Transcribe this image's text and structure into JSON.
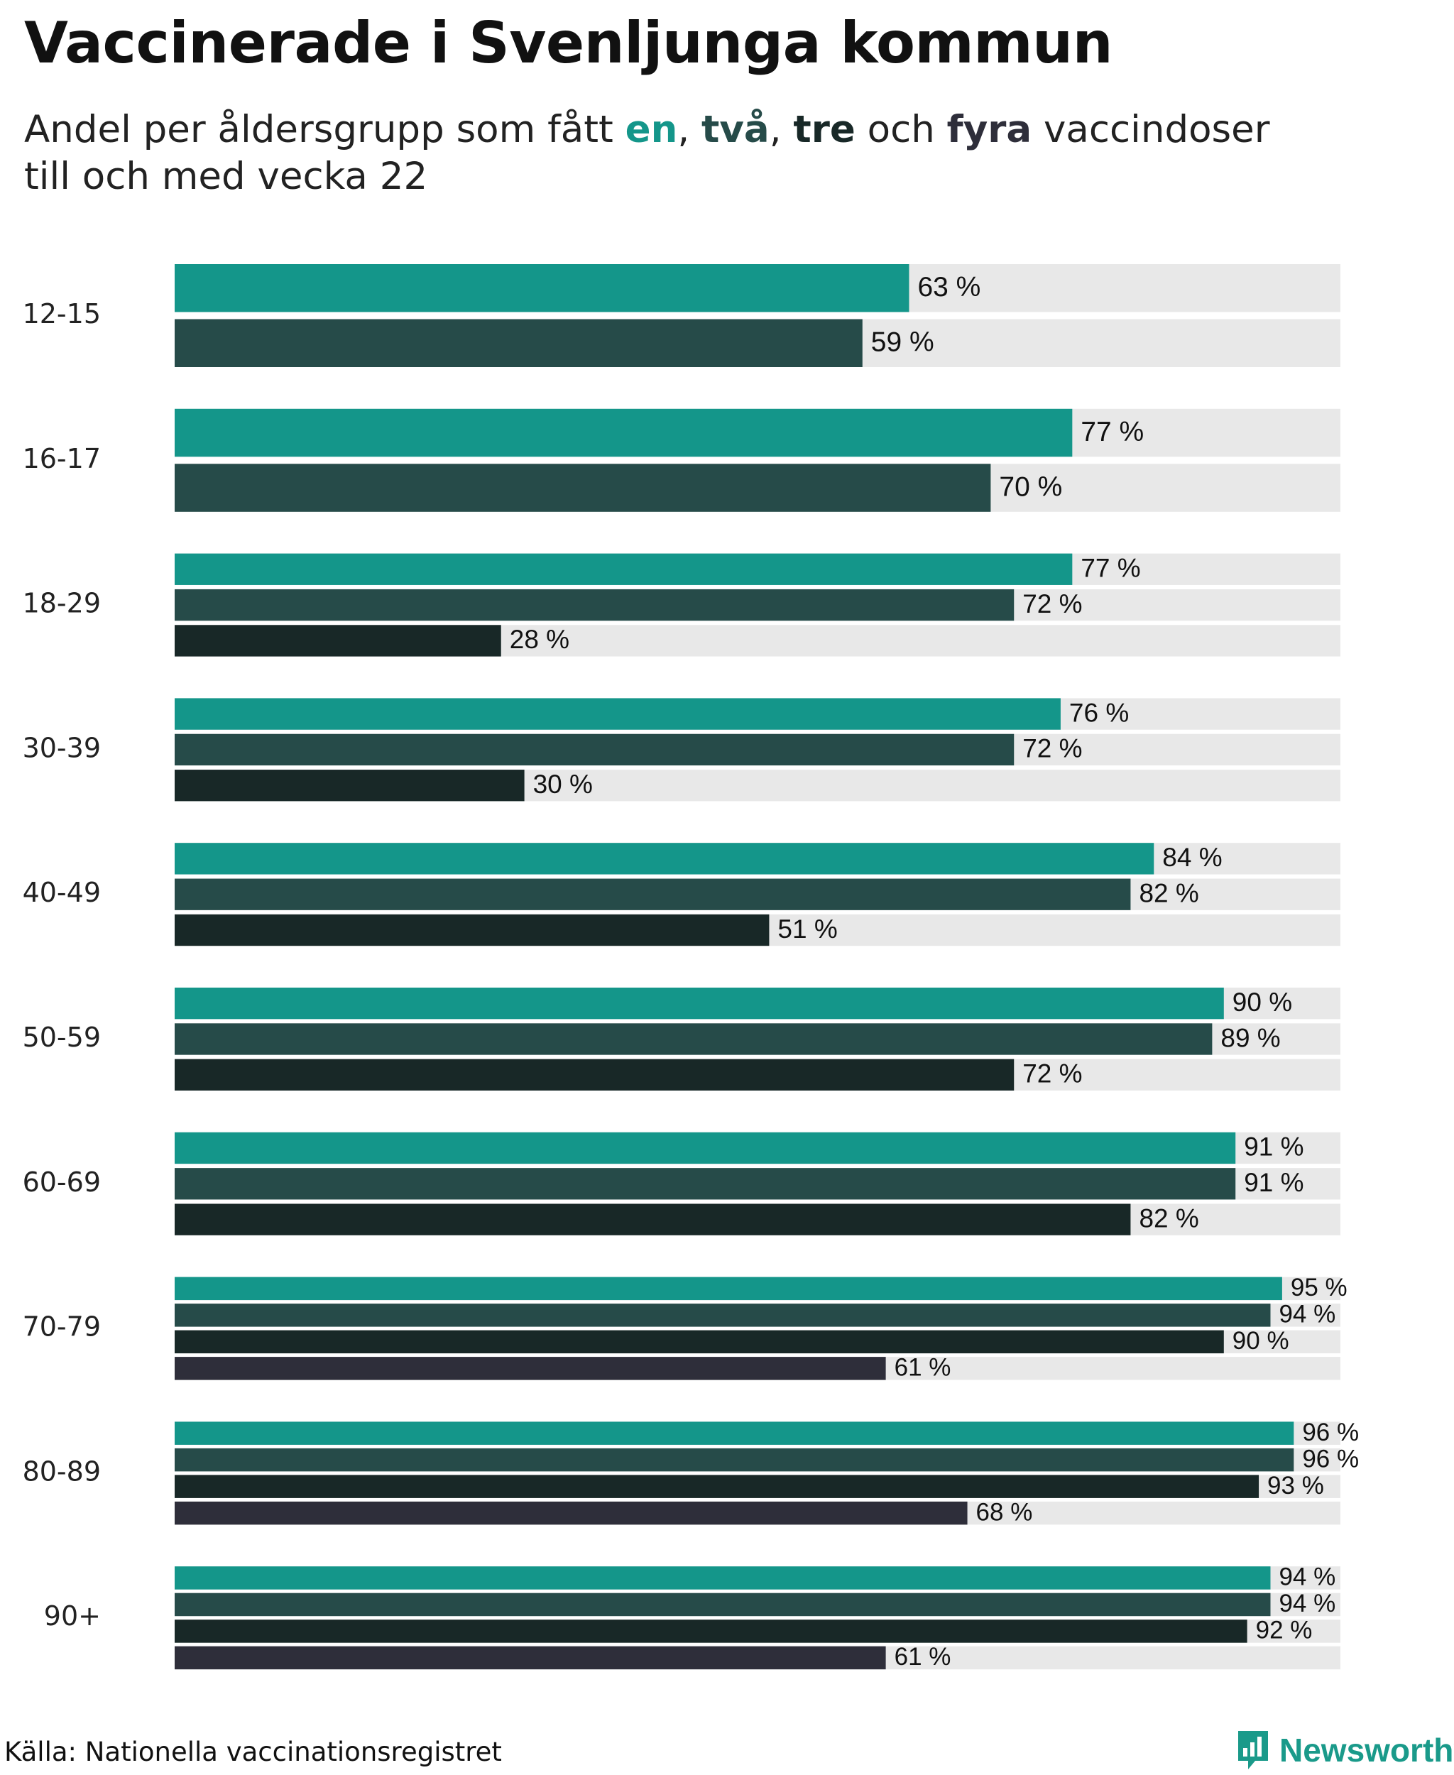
{
  "title": "Vaccinerade i Svenljunga kommun",
  "subtitle": {
    "prefix": "Andel per åldersgrupp som fått ",
    "dose1": "en",
    "sep1": ", ",
    "dose2": "två",
    "sep2": ", ",
    "dose3": "tre",
    "mid": " och ",
    "dose4": "fyra",
    "suffix": " vaccindoser",
    "line2": "till och med vecka 22"
  },
  "colors": {
    "dose1": "#14968a",
    "dose2": "#264b49",
    "dose3": "#182827",
    "dose4": "#2e2e3a",
    "track": "#e8e8e8"
  },
  "chart_data": {
    "type": "bar",
    "orientation": "horizontal",
    "categories": [
      "12-15",
      "16-17",
      "18-29",
      "30-39",
      "40-49",
      "50-59",
      "60-69",
      "70-79",
      "80-89",
      "90+"
    ],
    "series": [
      {
        "name": "en",
        "values": [
          63,
          77,
          77,
          76,
          84,
          90,
          91,
          95,
          96,
          94
        ]
      },
      {
        "name": "två",
        "values": [
          59,
          70,
          72,
          72,
          82,
          89,
          91,
          94,
          96,
          94
        ]
      },
      {
        "name": "tre",
        "values": [
          null,
          null,
          28,
          30,
          51,
          72,
          82,
          90,
          93,
          92
        ]
      },
      {
        "name": "fyra",
        "values": [
          null,
          null,
          null,
          null,
          null,
          null,
          null,
          61,
          68,
          61
        ]
      }
    ],
    "value_suffix": " %",
    "xlim": [
      0,
      100
    ],
    "title": "Vaccinerade i Svenljunga kommun"
  },
  "footer": {
    "source": "Källa: Nationella vaccinationsregistret",
    "brand": "Newsworthy"
  }
}
